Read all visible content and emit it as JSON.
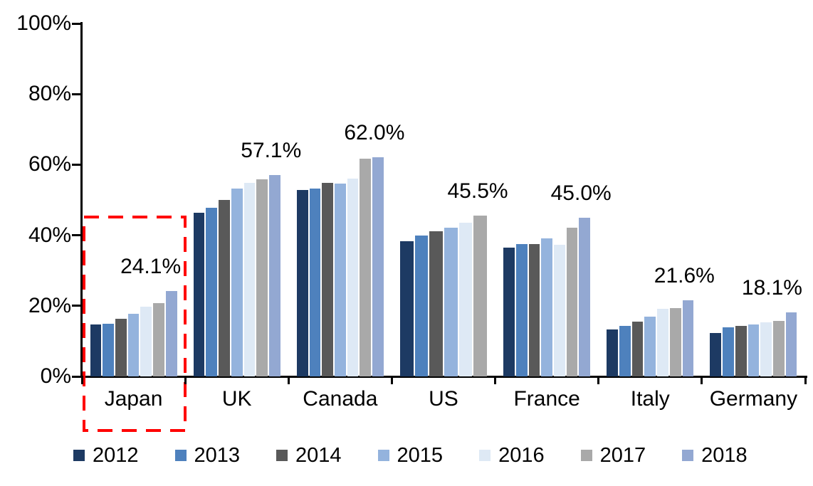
{
  "chart_data": {
    "type": "bar",
    "title": "",
    "categories": [
      "Japan",
      "UK",
      "Canada",
      "US",
      "France",
      "Italy",
      "Germany"
    ],
    "series": [
      {
        "name": "2012",
        "color": "#1D3A63",
        "values": [
          14.8,
          46.3,
          52.8,
          38.3,
          36.4,
          13.3,
          12.4
        ]
      },
      {
        "name": "2013",
        "color": "#4E81BD",
        "values": [
          15.0,
          47.8,
          53.3,
          40.0,
          37.6,
          14.3,
          14.0
        ]
      },
      {
        "name": "2014",
        "color": "#595959",
        "values": [
          16.4,
          50.0,
          54.8,
          41.2,
          37.6,
          15.5,
          14.4
        ]
      },
      {
        "name": "2015",
        "color": "#94B3DD",
        "values": [
          17.8,
          53.3,
          54.6,
          42.2,
          39.2,
          17.0,
          14.7
        ]
      },
      {
        "name": "2016",
        "color": "#DEE9F5",
        "values": [
          19.8,
          54.8,
          56.0,
          43.6,
          37.4,
          19.2,
          15.4
        ]
      },
      {
        "name": "2017",
        "color": "#A9A9A9",
        "values": [
          20.8,
          55.8,
          61.6,
          45.5,
          42.2,
          19.4,
          15.8
        ]
      },
      {
        "name": "2018",
        "color": "#93A8D2",
        "values": [
          24.1,
          57.1,
          62.0,
          null,
          45.0,
          21.6,
          18.1
        ]
      }
    ],
    "data_labels": [
      {
        "category": "Japan",
        "text": "24.1%"
      },
      {
        "category": "UK",
        "text": "57.1%"
      },
      {
        "category": "Canada",
        "text": "62.0%"
      },
      {
        "category": "US",
        "text": "45.5%"
      },
      {
        "category": "France",
        "text": "45.0%"
      },
      {
        "category": "Italy",
        "text": "21.6%"
      },
      {
        "category": "Germany",
        "text": "18.1%"
      }
    ],
    "y_axis": {
      "ticks": [
        "0%",
        "20%",
        "40%",
        "60%",
        "80%",
        "100%"
      ],
      "ylim": [
        0,
        100
      ],
      "grid": false
    },
    "x_axis": {
      "label": ""
    },
    "legend": {
      "position": "bottom",
      "entries": [
        "2012",
        "2013",
        "2014",
        "2015",
        "2016",
        "2017",
        "2018"
      ]
    },
    "highlight": {
      "category": "Japan",
      "style": "dashed-box",
      "color": "#FF0000"
    }
  }
}
